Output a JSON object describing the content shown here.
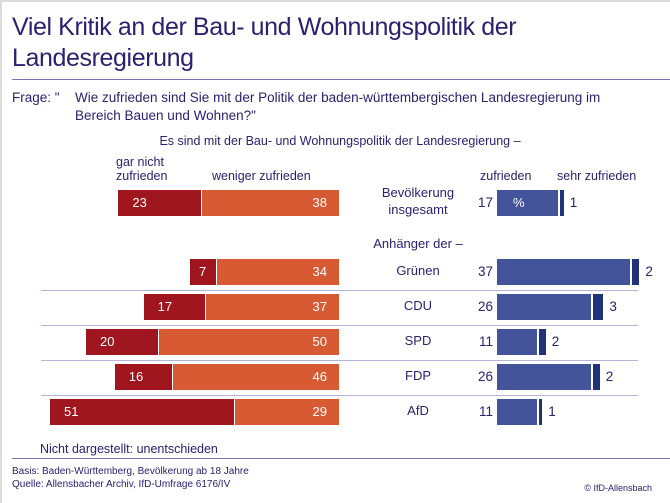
{
  "title": "Viel Kritik an der Bau- und Wohnungspolitik der Landesregierung",
  "question_label": "Frage: \"",
  "question_text": "Wie zufrieden sind Sie mit der Politik der baden-württembergischen Landesregierung im Bereich Bauen und Wohnen?\"",
  "note": "Nicht dargestellt: unentschieden",
  "footer": {
    "basis": "Basis: Baden-Württemberg, Bevölkerung ab 18 Jahre",
    "source": "Quelle: Allensbacher Archiv, IfD-Umfrage 6176/IV",
    "copyright": "© IfD-Allensbach"
  },
  "colors": {
    "gar_nicht": "#a0161e",
    "weniger": "#d75a32",
    "zufrieden": "#43549b",
    "sehr": "#1f3378",
    "text": "#2b2170"
  },
  "chart_data": {
    "type": "bar",
    "orientation": "horizontal-diverging",
    "title": "Es sind mit der Bau- und Wohnungspolitik der Landesregierung –",
    "group_label": "Anhänger der –",
    "unit_marker": "%",
    "legend": [
      "gar nicht zufrieden",
      "weniger zufrieden",
      "zufrieden",
      "sehr zufrieden"
    ],
    "legend_gar_nicht_line1": "gar nicht",
    "legend_gar_nicht_line2": "zufrieden",
    "categories": [
      "Bevölkerung insgesamt",
      "Grünen",
      "CDU",
      "SPD",
      "FDP",
      "AfD"
    ],
    "category_line1": [
      "Bevölkerung",
      "Grünen",
      "CDU",
      "SPD",
      "FDP",
      "AfD"
    ],
    "category_line2": [
      "insgesamt",
      "",
      "",
      "",
      "",
      ""
    ],
    "series": [
      {
        "name": "gar nicht zufrieden",
        "values": [
          23,
          7,
          17,
          20,
          16,
          51
        ]
      },
      {
        "name": "weniger zufrieden",
        "values": [
          38,
          34,
          37,
          50,
          46,
          29
        ]
      },
      {
        "name": "zufrieden",
        "values": [
          17,
          37,
          26,
          11,
          26,
          11
        ]
      },
      {
        "name": "sehr zufrieden",
        "values": [
          1,
          2,
          3,
          2,
          2,
          1
        ]
      }
    ]
  }
}
